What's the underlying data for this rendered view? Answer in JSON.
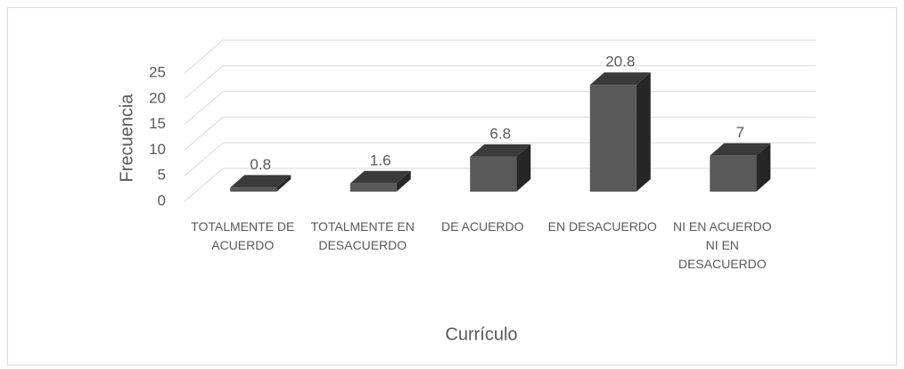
{
  "chart_data": {
    "type": "bar3d",
    "x_label": "Currículo",
    "y_label": "Frecuencia",
    "categories": [
      "TOTALMENTE DE ACUERDO",
      "TOTALMENTE EN DESACUERDO",
      "DE ACUERDO",
      "EN DESACUERDO",
      "NI EN ACUERDO NI EN DESACUERDO"
    ],
    "values": [
      0.8,
      1.6,
      6.8,
      20.8,
      7
    ],
    "color": "#595959",
    "ylim": [
      0,
      25
    ],
    "yticks": [
      0,
      5,
      10,
      15,
      20,
      25
    ],
    "grid": true
  }
}
